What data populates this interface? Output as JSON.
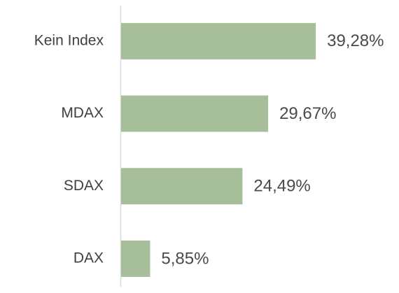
{
  "chart_data": {
    "type": "bar",
    "orientation": "horizontal",
    "categories": [
      "Kein Index",
      "MDAX",
      "SDAX",
      "DAX"
    ],
    "values": [
      39.28,
      29.67,
      24.49,
      5.85
    ],
    "value_labels": [
      "39,28%",
      "29,67%",
      "24,49%",
      "5,85%"
    ],
    "color": "#a6bf9a"
  }
}
